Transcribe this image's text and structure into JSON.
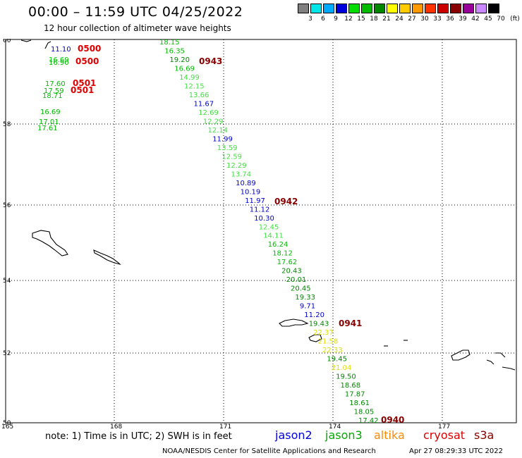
{
  "header": {
    "title": "00:00 – 11:59 UTC 04/25/2022",
    "subtitle": "12 hour collection of altimeter wave heights"
  },
  "scale": {
    "unit": "(ft)",
    "bins": [
      {
        "label": "3",
        "color": "#808080"
      },
      {
        "label": "6",
        "color": "#00e5e5"
      },
      {
        "label": "9",
        "color": "#00aaff"
      },
      {
        "label": "12",
        "color": "#0000dd"
      },
      {
        "label": "15",
        "color": "#00dd00"
      },
      {
        "label": "18",
        "color": "#00bb00"
      },
      {
        "label": "21",
        "color": "#008800"
      },
      {
        "label": "24",
        "color": "#ffff00"
      },
      {
        "label": "27",
        "color": "#ffcc00"
      },
      {
        "label": "30",
        "color": "#ff9900"
      },
      {
        "label": "33",
        "color": "#ff3300"
      },
      {
        "label": "36",
        "color": "#cc0000"
      },
      {
        "label": "39",
        "color": "#880000"
      },
      {
        "label": "42",
        "color": "#990099"
      },
      {
        "label": "45",
        "color": "#cc88ff"
      },
      {
        "label": "70",
        "color": "#000000"
      }
    ]
  },
  "axes": {
    "lat_labels": [
      "60",
      "58",
      "56",
      "54",
      "52",
      "50"
    ],
    "lon_labels": [
      "165",
      "168",
      "171",
      "174",
      "177"
    ]
  },
  "map": {
    "times": [
      {
        "text": "0500",
        "color": "#dd0000"
      },
      {
        "text": "0500",
        "color": "#dd0000"
      },
      {
        "text": "0501",
        "color": "#dd0000"
      },
      {
        "text": "0501",
        "color": "#dd0000"
      },
      {
        "text": "0943",
        "color": "#880000"
      },
      {
        "text": "0942",
        "color": "#880000"
      },
      {
        "text": "0941",
        "color": "#880000"
      },
      {
        "text": "0940",
        "color": "#880000"
      }
    ],
    "left_track": [
      {
        "text": "11.10",
        "color": "#0000cc"
      },
      {
        "text": "16.69",
        "color": "#00cc00"
      },
      {
        "text": "16.90",
        "color": "#00bb00"
      },
      {
        "text": "17.60",
        "color": "#00bb00"
      },
      {
        "text": "17.59",
        "color": "#00bb00"
      },
      {
        "text": "18.71",
        "color": "#00bb00"
      },
      {
        "text": "16.69",
        "color": "#00bb00"
      },
      {
        "text": "17.01",
        "color": "#00bb00"
      },
      {
        "text": "17.61",
        "color": "#00bb00"
      }
    ],
    "main_track": [
      {
        "text": "18.15",
        "color": "#00bb00"
      },
      {
        "text": "16.35",
        "color": "#00bb00"
      },
      {
        "text": "19.20",
        "color": "#008800"
      },
      {
        "text": "16.69",
        "color": "#00bb00"
      },
      {
        "text": "14.99",
        "color": "#44dd44"
      },
      {
        "text": "12.15",
        "color": "#44dd44"
      },
      {
        "text": "13.66",
        "color": "#44dd44"
      },
      {
        "text": "11.67",
        "color": "#0000cc"
      },
      {
        "text": "12.69",
        "color": "#44dd44"
      },
      {
        "text": "12.29",
        "color": "#44dd44"
      },
      {
        "text": "12.14",
        "color": "#44dd44"
      },
      {
        "text": "11.99",
        "color": "#0000cc"
      },
      {
        "text": "13.59",
        "color": "#44dd44"
      },
      {
        "text": "12.59",
        "color": "#44dd44"
      },
      {
        "text": "12.29",
        "color": "#44dd44"
      },
      {
        "text": "13.74",
        "color": "#44dd44"
      },
      {
        "text": "10.89",
        "color": "#0000cc"
      },
      {
        "text": "10.19",
        "color": "#0000cc"
      },
      {
        "text": "11.97",
        "color": "#0000cc"
      },
      {
        "text": "11.12",
        "color": "#0000cc"
      },
      {
        "text": "10.30",
        "color": "#0000cc"
      },
      {
        "text": "12.45",
        "color": "#44dd44"
      },
      {
        "text": "14.11",
        "color": "#44dd44"
      },
      {
        "text": "16.24",
        "color": "#00bb00"
      },
      {
        "text": "18.12",
        "color": "#00bb00"
      },
      {
        "text": "17.62",
        "color": "#00bb00"
      },
      {
        "text": "20.43",
        "color": "#008800"
      },
      {
        "text": "20.01",
        "color": "#008800"
      },
      {
        "text": "20.45",
        "color": "#008800"
      },
      {
        "text": "19.33",
        "color": "#008800"
      },
      {
        "text": "9.71",
        "color": "#0000cc"
      },
      {
        "text": "11.20",
        "color": "#0000cc"
      },
      {
        "text": "19.43",
        "color": "#008800"
      },
      {
        "text": "22.37",
        "color": "#dddd00"
      },
      {
        "text": "21.58",
        "color": "#dddd00"
      },
      {
        "text": "22.33",
        "color": "#dddd00"
      },
      {
        "text": "19.45",
        "color": "#008800"
      },
      {
        "text": "21.04",
        "color": "#dddd00"
      },
      {
        "text": "19.50",
        "color": "#008800"
      },
      {
        "text": "18.68",
        "color": "#008800"
      },
      {
        "text": "17.87",
        "color": "#008800"
      },
      {
        "text": "18.61",
        "color": "#008800"
      },
      {
        "text": "18.05",
        "color": "#008800"
      },
      {
        "text": "17.42",
        "color": "#008800"
      }
    ]
  },
  "footer": {
    "note": "note:  1) Time is in UTC;  2) SWH is in feet",
    "sat_jason2": {
      "label": "jason2",
      "color": "#0000dd"
    },
    "sat_jason3": {
      "label": "jason3",
      "color": "#00aa00"
    },
    "sat_altika": {
      "label": "altika",
      "color": "#ff8800"
    },
    "sat_cryosat": {
      "label": "cryosat",
      "color": "#dd0000"
    },
    "sat_s3a": {
      "label": "s3a",
      "color": "#880000"
    },
    "credit": "NOAA/NESDIS Center for Satellite Applications and Research",
    "timestamp": "Apr 27 08:29:33 UTC 2022"
  }
}
